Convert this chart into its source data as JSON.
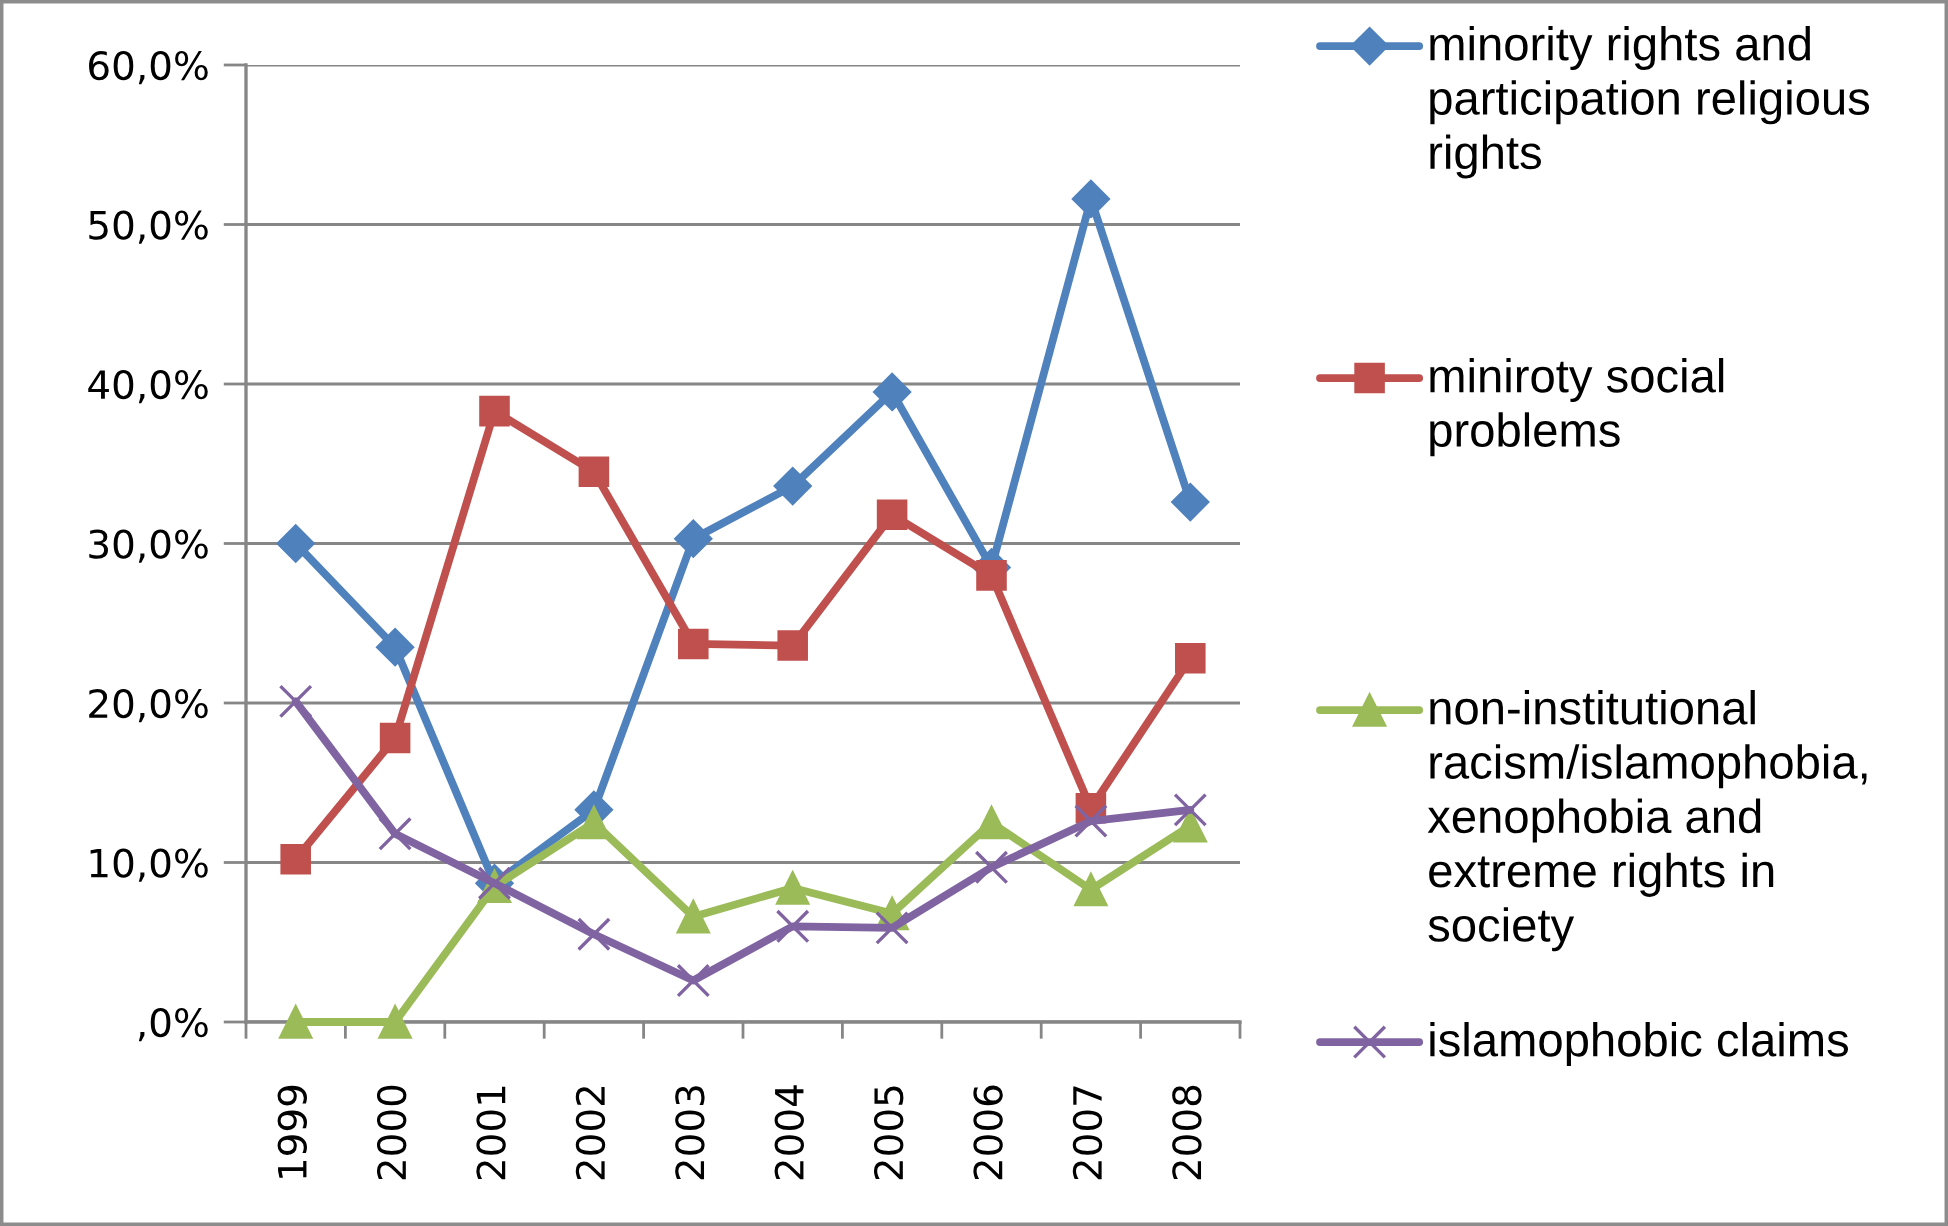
{
  "chart_data": {
    "type": "line",
    "categories": [
      "1999",
      "2000",
      "2001",
      "2002",
      "2003",
      "2004",
      "2005",
      "2006",
      "2007",
      "2008"
    ],
    "series": [
      {
        "name": "minority rights and participation religious rights",
        "color": "#4f81bd",
        "marker": "diamond",
        "values": [
          30.0,
          23.5,
          8.7,
          13.3,
          30.3,
          33.6,
          39.5,
          28.5,
          51.6,
          32.6
        ]
      },
      {
        "name": "miniroty social problems",
        "color": "#c0504d",
        "marker": "square",
        "values": [
          10.2,
          17.8,
          38.3,
          34.5,
          23.7,
          23.6,
          31.8,
          28.0,
          13.4,
          22.8
        ]
      },
      {
        "name": "non-institutional racism/islamophobia, xenophobia and extreme rights in society",
        "color": "#9bbb59",
        "marker": "triangle",
        "values": [
          0.0,
          0.0,
          8.5,
          12.5,
          6.6,
          8.4,
          6.8,
          12.5,
          8.3,
          12.3
        ]
      },
      {
        "name": "islamophobic claims",
        "color": "#8064a2",
        "marker": "cross",
        "values": [
          20.1,
          11.8,
          8.7,
          5.5,
          2.6,
          6.0,
          5.9,
          9.7,
          12.6,
          13.3
        ]
      }
    ],
    "ylim": [
      0,
      60
    ],
    "yticks": [
      {
        "value": 0,
        "label": ",0%"
      },
      {
        "value": 10,
        "label": "10,0%"
      },
      {
        "value": 20,
        "label": "20,0%"
      },
      {
        "value": 30,
        "label": "30,0%"
      },
      {
        "value": 40,
        "label": "40,0%"
      },
      {
        "value": 50,
        "label": "50,0%"
      },
      {
        "value": 60,
        "label": "60,0%"
      }
    ],
    "grid": "y",
    "legend": "right",
    "line_style": "solid"
  }
}
